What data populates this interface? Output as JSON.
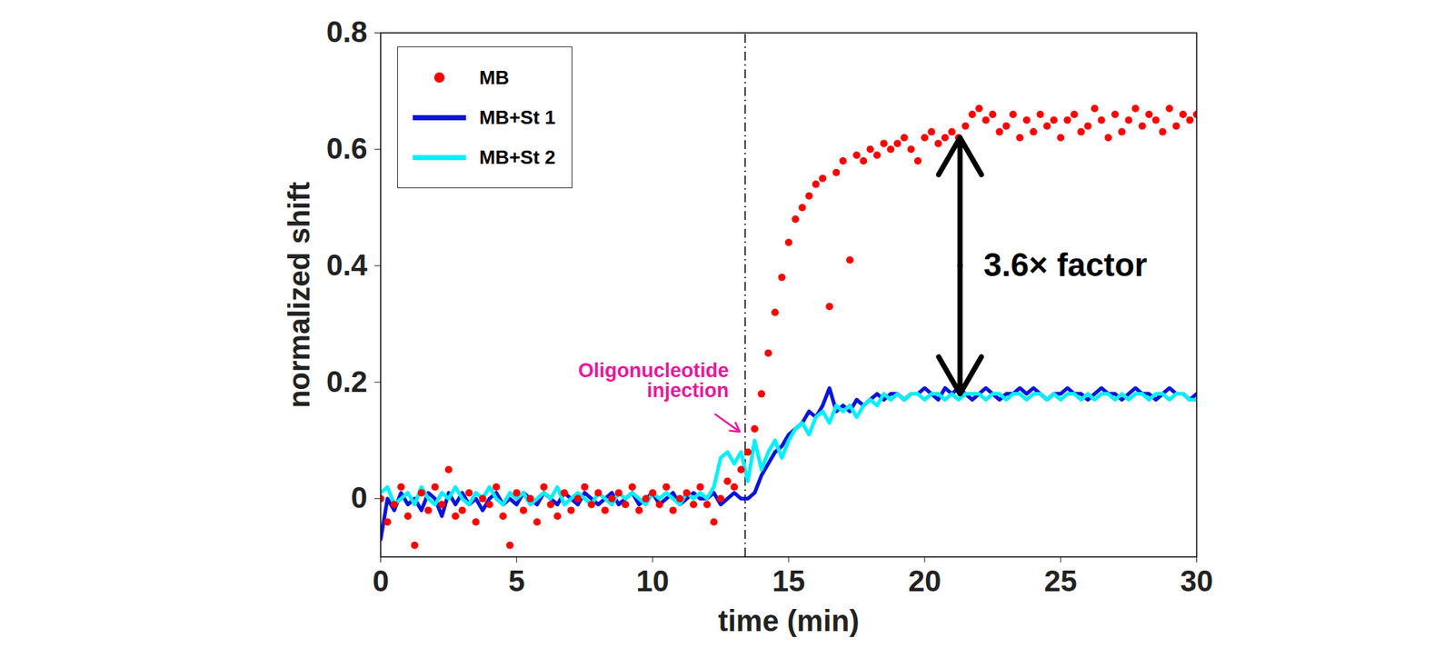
{
  "chart_data": {
    "type": "line",
    "x_label": "time (min)",
    "y_label": "normalized shift",
    "xlim": [
      0,
      30
    ],
    "xticks": [
      0,
      5,
      10,
      15,
      20,
      25,
      30
    ],
    "ylim": [
      -0.1,
      0.8
    ],
    "yticks": [
      0,
      0.2,
      0.4,
      0.6,
      0.8
    ],
    "grid": false,
    "legend": "top-left",
    "x": [
      0,
      0.25,
      0.5,
      0.75,
      1,
      1.25,
      1.5,
      1.75,
      2,
      2.25,
      2.5,
      2.75,
      3,
      3.25,
      3.5,
      3.75,
      4,
      4.25,
      4.5,
      4.75,
      5,
      5.25,
      5.5,
      5.75,
      6,
      6.25,
      6.5,
      6.75,
      7,
      7.25,
      7.5,
      7.75,
      8,
      8.25,
      8.5,
      8.75,
      9,
      9.25,
      9.5,
      9.75,
      10,
      10.25,
      10.5,
      10.75,
      11,
      11.25,
      11.5,
      11.75,
      12,
      12.25,
      12.5,
      12.75,
      13,
      13.25,
      13.5,
      13.75,
      14,
      14.25,
      14.5,
      14.75,
      15,
      15.25,
      15.5,
      15.75,
      16,
      16.25,
      16.5,
      16.75,
      17,
      17.25,
      17.5,
      17.75,
      18,
      18.25,
      18.5,
      18.75,
      19,
      19.25,
      19.5,
      19.75,
      20,
      20.25,
      20.5,
      20.75,
      21,
      21.25,
      21.5,
      21.75,
      22,
      22.25,
      22.5,
      22.75,
      23,
      23.25,
      23.5,
      23.75,
      24,
      24.25,
      24.5,
      24.75,
      25,
      25.25,
      25.5,
      25.75,
      26,
      26.25,
      26.5,
      26.75,
      27,
      27.25,
      27.5,
      27.75,
      28,
      28.25,
      28.5,
      28.75,
      29,
      29.25,
      29.5,
      29.75,
      30
    ],
    "series": [
      {
        "name": "MB+St 1",
        "color": "#0a14d9",
        "type": "line",
        "line_style": "solid",
        "values": [
          -0.07,
          0.0,
          -0.02,
          0.01,
          -0.01,
          0.0,
          -0.02,
          0.01,
          0.0,
          -0.03,
          0.01,
          -0.01,
          0.01,
          -0.01,
          0.0,
          -0.02,
          0.0,
          0.01,
          -0.01,
          0.0,
          -0.01,
          0.01,
          0.0,
          -0.01,
          0.01,
          0.0,
          -0.01,
          0.01,
          0.0,
          -0.01,
          0.01,
          0.0,
          -0.01,
          0.0,
          0.01,
          -0.01,
          0.0,
          0.01,
          -0.01,
          0.0,
          0.01,
          -0.01,
          0.0,
          0.01,
          -0.01,
          0.0,
          0.01,
          0.0,
          0.0,
          0.01,
          -0.01,
          0.0,
          0.01,
          0.0,
          0.0,
          0.01,
          0.04,
          0.06,
          0.08,
          0.09,
          0.11,
          0.12,
          0.13,
          0.15,
          0.14,
          0.16,
          0.19,
          0.15,
          0.16,
          0.15,
          0.17,
          0.16,
          0.17,
          0.18,
          0.17,
          0.18,
          0.18,
          0.17,
          0.18,
          0.18,
          0.19,
          0.18,
          0.17,
          0.19,
          0.18,
          0.19,
          0.18,
          0.17,
          0.18,
          0.19,
          0.18,
          0.17,
          0.18,
          0.18,
          0.19,
          0.18,
          0.19,
          0.18,
          0.17,
          0.18,
          0.18,
          0.19,
          0.18,
          0.18,
          0.17,
          0.18,
          0.19,
          0.18,
          0.18,
          0.17,
          0.18,
          0.19,
          0.18,
          0.18,
          0.17,
          0.18,
          0.19,
          0.18,
          0.18,
          0.17,
          0.18
        ]
      },
      {
        "name": "MB+St 2",
        "color": "#00f0ff",
        "type": "line",
        "line_style": "solid",
        "values": [
          0.01,
          0.02,
          -0.01,
          0.0,
          0.01,
          -0.01,
          0.02,
          0.0,
          -0.01,
          0.01,
          0.0,
          0.02,
          0.0,
          -0.01,
          0.01,
          0.0,
          0.02,
          0.0,
          -0.01,
          0.01,
          0.0,
          0.01,
          -0.01,
          0.0,
          0.01,
          0.0,
          0.02,
          -0.01,
          0.0,
          0.01,
          0.0,
          -0.01,
          0.01,
          0.0,
          -0.01,
          0.01,
          0.0,
          0.01,
          0.0,
          -0.01,
          0.01,
          0.0,
          0.01,
          0.0,
          -0.01,
          0.01,
          0.0,
          0.01,
          0.0,
          0.02,
          0.07,
          0.08,
          0.06,
          0.08,
          0.03,
          0.1,
          0.05,
          0.08,
          0.1,
          0.07,
          0.1,
          0.12,
          0.13,
          0.11,
          0.14,
          0.15,
          0.13,
          0.16,
          0.15,
          0.16,
          0.14,
          0.16,
          0.17,
          0.16,
          0.18,
          0.17,
          0.18,
          0.17,
          0.18,
          0.18,
          0.17,
          0.18,
          0.18,
          0.17,
          0.18,
          0.17,
          0.18,
          0.18,
          0.18,
          0.17,
          0.18,
          0.18,
          0.17,
          0.18,
          0.18,
          0.17,
          0.18,
          0.18,
          0.17,
          0.18,
          0.17,
          0.18,
          0.18,
          0.17,
          0.18,
          0.17,
          0.18,
          0.18,
          0.17,
          0.18,
          0.17,
          0.18,
          0.18,
          0.17,
          0.18,
          0.18,
          0.17,
          0.18,
          0.18,
          0.17,
          0.17
        ]
      },
      {
        "name": "MB",
        "color": "#ff0000",
        "type": "scatter",
        "marker": "circle",
        "values": [
          0.0,
          -0.04,
          -0.01,
          0.02,
          -0.03,
          -0.08,
          0.01,
          -0.02,
          0.02,
          -0.01,
          0.05,
          -0.03,
          -0.02,
          0.01,
          -0.04,
          0.0,
          -0.01,
          0.02,
          -0.03,
          -0.08,
          0.01,
          -0.02,
          0.0,
          -0.04,
          0.02,
          -0.01,
          -0.03,
          0.01,
          -0.02,
          0.0,
          0.02,
          -0.01,
          0.01,
          -0.02,
          0.0,
          0.01,
          -0.01,
          0.02,
          -0.02,
          0.0,
          0.01,
          -0.01,
          0.02,
          -0.02,
          0.0,
          0.01,
          -0.01,
          0.02,
          -0.01,
          -0.04,
          0.0,
          0.03,
          0.02,
          0.05,
          0.08,
          0.12,
          0.18,
          0.25,
          0.32,
          0.38,
          0.44,
          0.48,
          0.5,
          0.52,
          0.54,
          0.55,
          0.33,
          0.56,
          0.58,
          0.41,
          0.59,
          0.58,
          0.6,
          0.59,
          0.61,
          0.6,
          0.61,
          0.62,
          0.6,
          0.58,
          0.62,
          0.63,
          0.61,
          0.62,
          0.63,
          0.62,
          0.64,
          0.66,
          0.67,
          0.65,
          0.66,
          0.63,
          0.64,
          0.66,
          0.62,
          0.65,
          0.63,
          0.66,
          0.64,
          0.65,
          0.62,
          0.65,
          0.66,
          0.63,
          0.64,
          0.67,
          0.65,
          0.62,
          0.66,
          0.63,
          0.65,
          0.67,
          0.64,
          0.66,
          0.65,
          0.63,
          0.67,
          0.64,
          0.66,
          0.65,
          0.66
        ]
      }
    ],
    "annotations": [
      {
        "text": "Oligonucleotide injection",
        "x": 13.4,
        "color": "#e8199b"
      },
      {
        "text": "3.6× factor",
        "x": 21.3,
        "y": [
          0.18,
          0.62
        ]
      }
    ]
  }
}
